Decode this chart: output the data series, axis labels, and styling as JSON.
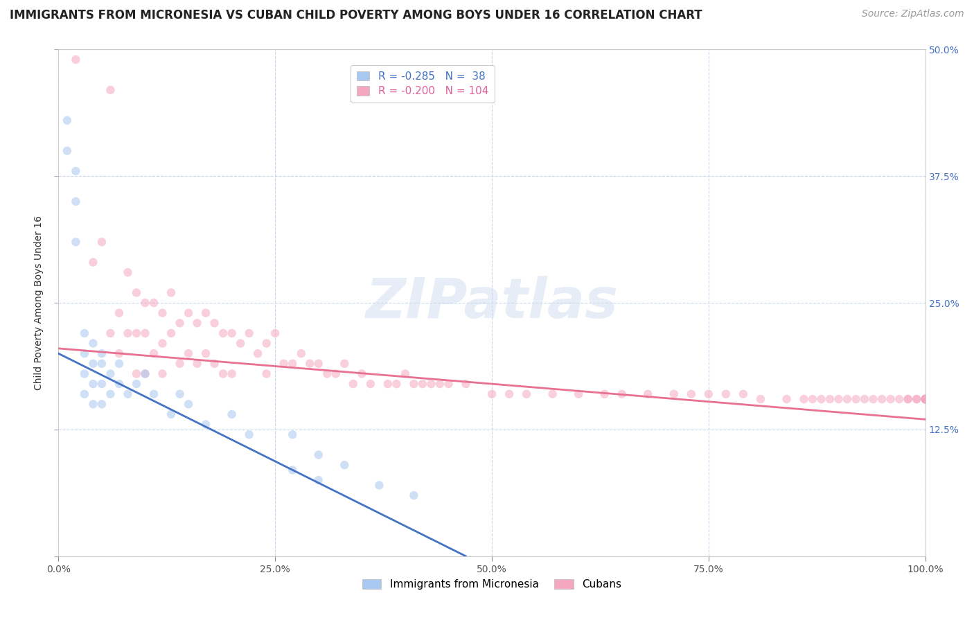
{
  "title": "IMMIGRANTS FROM MICRONESIA VS CUBAN CHILD POVERTY AMONG BOYS UNDER 16 CORRELATION CHART",
  "source": "Source: ZipAtlas.com",
  "ylabel": "Child Poverty Among Boys Under 16",
  "series1_label": "Immigrants from Micronesia",
  "series2_label": "Cubans",
  "series1_R": -0.285,
  "series1_N": 38,
  "series2_R": -0.2,
  "series2_N": 104,
  "series1_color": "#a8c8f0",
  "series2_color": "#f4a8be",
  "trendline1_color": "#4472c4",
  "trendline2_color": "#e87090",
  "background_color": "#ffffff",
  "grid_color": "#c8d8ec",
  "watermark_text": "ZIPatlas",
  "xlim": [
    0.0,
    1.0
  ],
  "ylim": [
    0.0,
    0.5
  ],
  "yticks": [
    0.0,
    0.125,
    0.25,
    0.375,
    0.5
  ],
  "ytick_labels_left": [
    "",
    "",
    "",
    "",
    ""
  ],
  "ytick_labels_right": [
    "",
    "12.5%",
    "25.0%",
    "37.5%",
    "50.0%"
  ],
  "xticks": [
    0.0,
    0.25,
    0.5,
    0.75,
    1.0
  ],
  "xtick_labels": [
    "0.0%",
    "25.0%",
    "50.0%",
    "75.0%",
    "100.0%"
  ],
  "trendline1_x": [
    0.0,
    0.47
  ],
  "trendline1_y": [
    0.2,
    0.0
  ],
  "trendline2_x": [
    0.0,
    1.0
  ],
  "trendline2_y": [
    0.205,
    0.135
  ],
  "series1_x": [
    0.01,
    0.01,
    0.02,
    0.02,
    0.02,
    0.03,
    0.03,
    0.03,
    0.03,
    0.04,
    0.04,
    0.04,
    0.04,
    0.05,
    0.05,
    0.05,
    0.05,
    0.06,
    0.06,
    0.07,
    0.07,
    0.08,
    0.09,
    0.1,
    0.11,
    0.13,
    0.14,
    0.15,
    0.17,
    0.2,
    0.22,
    0.27,
    0.3,
    0.33,
    0.37,
    0.41,
    0.27,
    0.3
  ],
  "series1_y": [
    0.43,
    0.4,
    0.38,
    0.35,
    0.31,
    0.22,
    0.2,
    0.18,
    0.16,
    0.21,
    0.19,
    0.17,
    0.15,
    0.2,
    0.19,
    0.17,
    0.15,
    0.18,
    0.16,
    0.19,
    0.17,
    0.16,
    0.17,
    0.18,
    0.16,
    0.14,
    0.16,
    0.15,
    0.13,
    0.14,
    0.12,
    0.12,
    0.1,
    0.09,
    0.07,
    0.06,
    0.085,
    0.075
  ],
  "series2_x": [
    0.02,
    0.04,
    0.05,
    0.06,
    0.06,
    0.07,
    0.07,
    0.08,
    0.08,
    0.09,
    0.09,
    0.09,
    0.1,
    0.1,
    0.1,
    0.11,
    0.11,
    0.12,
    0.12,
    0.12,
    0.13,
    0.13,
    0.14,
    0.14,
    0.15,
    0.15,
    0.16,
    0.16,
    0.17,
    0.17,
    0.18,
    0.18,
    0.19,
    0.19,
    0.2,
    0.2,
    0.21,
    0.22,
    0.23,
    0.24,
    0.24,
    0.25,
    0.26,
    0.27,
    0.28,
    0.29,
    0.3,
    0.31,
    0.32,
    0.33,
    0.34,
    0.35,
    0.36,
    0.38,
    0.39,
    0.4,
    0.41,
    0.42,
    0.43,
    0.44,
    0.45,
    0.47,
    0.5,
    0.52,
    0.54,
    0.57,
    0.6,
    0.63,
    0.65,
    0.68,
    0.71,
    0.73,
    0.75,
    0.77,
    0.79,
    0.81,
    0.84,
    0.86,
    0.87,
    0.88,
    0.89,
    0.9,
    0.91,
    0.92,
    0.93,
    0.94,
    0.95,
    0.96,
    0.97,
    0.98,
    0.98,
    0.99,
    0.99,
    1.0,
    1.0,
    1.0,
    1.0,
    1.0,
    1.0,
    1.0,
    1.0,
    1.0,
    1.0,
    1.0
  ],
  "series2_y": [
    0.49,
    0.29,
    0.31,
    0.46,
    0.22,
    0.24,
    0.2,
    0.28,
    0.22,
    0.26,
    0.22,
    0.18,
    0.25,
    0.22,
    0.18,
    0.25,
    0.2,
    0.24,
    0.21,
    0.18,
    0.26,
    0.22,
    0.23,
    0.19,
    0.24,
    0.2,
    0.23,
    0.19,
    0.24,
    0.2,
    0.23,
    0.19,
    0.22,
    0.18,
    0.22,
    0.18,
    0.21,
    0.22,
    0.2,
    0.21,
    0.18,
    0.22,
    0.19,
    0.19,
    0.2,
    0.19,
    0.19,
    0.18,
    0.18,
    0.19,
    0.17,
    0.18,
    0.17,
    0.17,
    0.17,
    0.18,
    0.17,
    0.17,
    0.17,
    0.17,
    0.17,
    0.17,
    0.16,
    0.16,
    0.16,
    0.16,
    0.16,
    0.16,
    0.16,
    0.16,
    0.16,
    0.16,
    0.16,
    0.16,
    0.16,
    0.155,
    0.155,
    0.155,
    0.155,
    0.155,
    0.155,
    0.155,
    0.155,
    0.155,
    0.155,
    0.155,
    0.155,
    0.155,
    0.155,
    0.155,
    0.155,
    0.155,
    0.155,
    0.155,
    0.155,
    0.155,
    0.155,
    0.155,
    0.155,
    0.155,
    0.155,
    0.155,
    0.155,
    0.155
  ],
  "marker_size": 80,
  "marker_alpha": 0.55,
  "title_fontsize": 12,
  "axis_label_fontsize": 10,
  "tick_fontsize": 10,
  "legend_fontsize": 11,
  "source_fontsize": 10
}
